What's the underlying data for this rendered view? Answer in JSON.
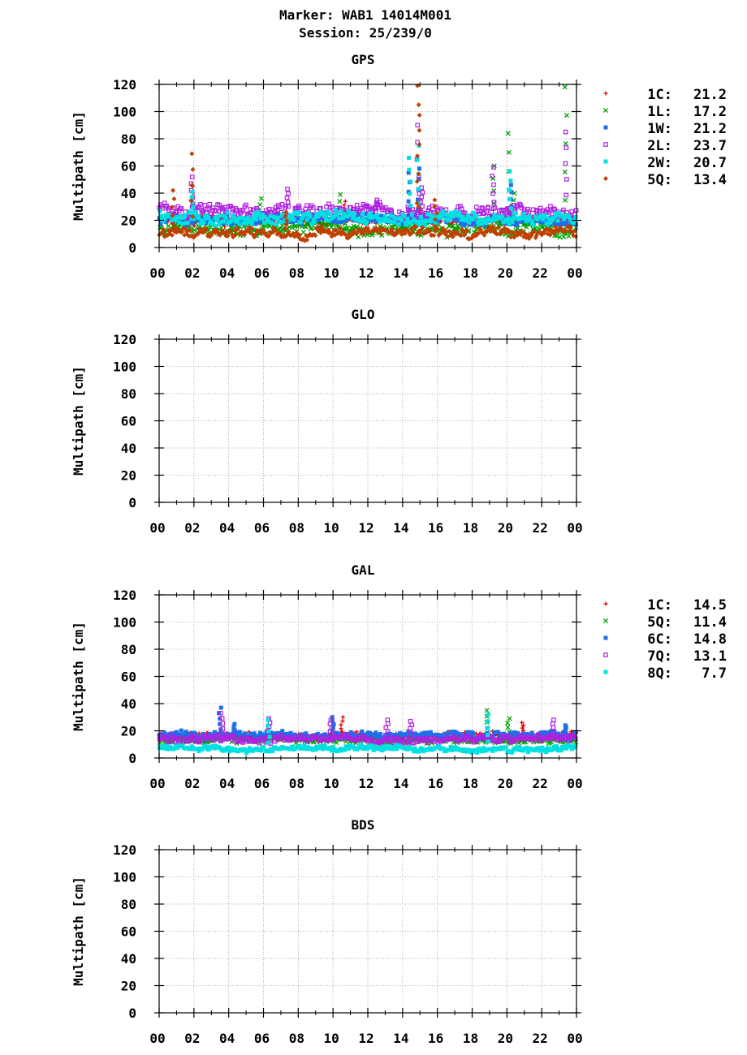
{
  "header": {
    "marker": "Marker: WAB1 14014M001",
    "session": "Session: 25/239/0"
  },
  "chart_data": [
    {
      "type": "scatter",
      "title": "GPS",
      "ylabel": "Multipath [cm]",
      "xlabel": "",
      "x_range_hours": [
        0,
        24
      ],
      "ylim": [
        0,
        120
      ],
      "x_tick_labels": [
        "00",
        "02",
        "04",
        "06",
        "08",
        "10",
        "12",
        "14",
        "16",
        "18",
        "20",
        "22",
        "00"
      ],
      "y_tick_labels": [
        "0",
        "20",
        "40",
        "60",
        "80",
        "100",
        "120"
      ],
      "grid": true,
      "legend_placement": "right",
      "series": [
        {
          "name": "1C",
          "value": "21.2",
          "color": "#e00000",
          "marker": "plus",
          "baseline": 20,
          "spread": 5,
          "spikes": [
            [
              1.9,
              45
            ],
            [
              10.7,
              34
            ],
            [
              15.0,
              34
            ]
          ]
        },
        {
          "name": "1L",
          "value": "17.2",
          "color": "#00a000",
          "marker": "x",
          "baseline": 14,
          "spread": 7,
          "spikes": [
            [
              19.2,
              60
            ],
            [
              20.1,
              84
            ],
            [
              20.4,
              40
            ],
            [
              23.4,
              118
            ],
            [
              5.8,
              36
            ],
            [
              10.4,
              39
            ]
          ]
        },
        {
          "name": "1W",
          "value": "21.2",
          "color": "#1e6fe8",
          "marker": "square",
          "baseline": 20,
          "spread": 5,
          "spikes": [
            [
              14.4,
              55
            ],
            [
              14.9,
              58
            ],
            [
              20.2,
              46
            ]
          ]
        },
        {
          "name": "2L",
          "value": "23.7",
          "color": "#b020e0",
          "marker": "square-open",
          "baseline": 27,
          "spread": 7,
          "spikes": [
            [
              1.9,
              52
            ],
            [
              7.4,
              43
            ],
            [
              14.9,
              90
            ],
            [
              15.1,
              44
            ],
            [
              19.2,
              59
            ],
            [
              23.4,
              85
            ],
            [
              12.5,
              35
            ]
          ]
        },
        {
          "name": "2W",
          "value": "20.7",
          "color": "#00e0e0",
          "marker": "square",
          "baseline": 22,
          "spread": 7,
          "spikes": [
            [
              14.4,
              66
            ],
            [
              14.9,
              75
            ],
            [
              20.2,
              56
            ],
            [
              1.9,
              41
            ]
          ]
        },
        {
          "name": "5Q",
          "value": "13.4",
          "color": "#c04000",
          "marker": "diamond",
          "baseline": 11,
          "spread": 5,
          "spikes": [
            [
              1.9,
              69
            ],
            [
              0.8,
              42
            ],
            [
              14.9,
              119
            ],
            [
              14.9,
              105
            ],
            [
              15.9,
              35
            ],
            [
              7.3,
              26
            ]
          ]
        }
      ]
    },
    {
      "type": "scatter",
      "title": "GLO",
      "ylabel": "Multipath [cm]",
      "xlabel": "",
      "x_range_hours": [
        0,
        24
      ],
      "ylim": [
        0,
        120
      ],
      "x_tick_labels": [
        "00",
        "02",
        "04",
        "06",
        "08",
        "10",
        "12",
        "14",
        "16",
        "18",
        "20",
        "22",
        "00"
      ],
      "y_tick_labels": [
        "0",
        "20",
        "40",
        "60",
        "80",
        "100",
        "120"
      ],
      "grid": true,
      "series": []
    },
    {
      "type": "scatter",
      "title": "GAL",
      "ylabel": "Multipath [cm]",
      "xlabel": "",
      "x_range_hours": [
        0,
        24
      ],
      "ylim": [
        0,
        120
      ],
      "x_tick_labels": [
        "00",
        "02",
        "04",
        "06",
        "08",
        "10",
        "12",
        "14",
        "16",
        "18",
        "20",
        "22",
        "00"
      ],
      "y_tick_labels": [
        "0",
        "20",
        "40",
        "60",
        "80",
        "100",
        "120"
      ],
      "grid": true,
      "legend_placement": "right",
      "series": [
        {
          "name": "1C",
          "value": "14.5",
          "color": "#e00000",
          "marker": "plus",
          "baseline": 16,
          "spread": 4,
          "spikes": [
            [
              0.8,
              17
            ],
            [
              10.5,
              30
            ],
            [
              20.9,
              26
            ]
          ]
        },
        {
          "name": "5Q",
          "value": "11.4",
          "color": "#00a000",
          "marker": "x",
          "baseline": 13,
          "spread": 4,
          "spikes": [
            [
              18.9,
              35
            ],
            [
              20.1,
              29
            ]
          ]
        },
        {
          "name": "6C",
          "value": "14.8",
          "color": "#1e6fe8",
          "marker": "square",
          "baseline": 17,
          "spread": 4,
          "spikes": [
            [
              3.5,
              37
            ],
            [
              4.3,
              25
            ],
            [
              10.0,
              30
            ],
            [
              23.4,
              24
            ]
          ]
        },
        {
          "name": "7Q",
          "value": "13.1",
          "color": "#b020e0",
          "marker": "square-open",
          "baseline": 14,
          "spread": 4,
          "spikes": [
            [
              3.6,
              33
            ],
            [
              6.3,
              29
            ],
            [
              9.9,
              28
            ],
            [
              13.1,
              28
            ],
            [
              22.7,
              28
            ],
            [
              14.5,
              27
            ]
          ]
        },
        {
          "name": "8Q",
          "value": "7.7",
          "color": "#00e0e0",
          "marker": "square",
          "baseline": 7,
          "spread": 3,
          "spikes": [
            [
              6.3,
              28
            ],
            [
              18.9,
              32
            ]
          ]
        }
      ]
    },
    {
      "type": "scatter",
      "title": "BDS",
      "ylabel": "Multipath [cm]",
      "xlabel": "",
      "x_range_hours": [
        0,
        24
      ],
      "ylim": [
        0,
        120
      ],
      "x_tick_labels": [
        "00",
        "02",
        "04",
        "06",
        "08",
        "10",
        "12",
        "14",
        "16",
        "18",
        "20",
        "22",
        "00"
      ],
      "y_tick_labels": [
        "0",
        "20",
        "40",
        "60",
        "80",
        "100",
        "120"
      ],
      "grid": true,
      "series": []
    }
  ]
}
